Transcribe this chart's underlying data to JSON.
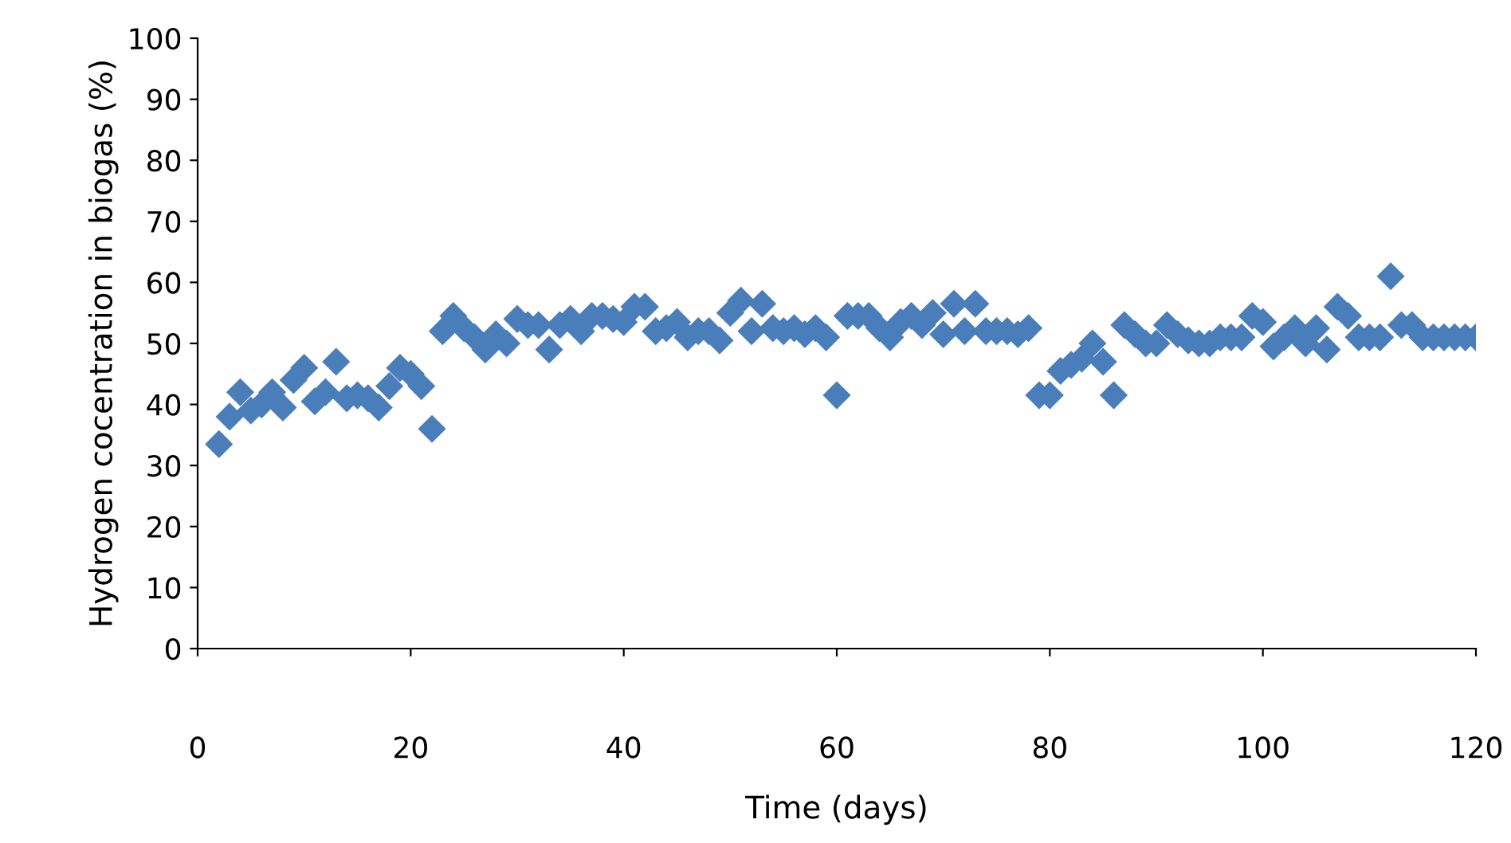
{
  "chart_data": {
    "type": "scatter",
    "xlabel": "Time (days)",
    "ylabel": "Hydrogen cocentration in biogas (%)",
    "x": [
      2,
      3,
      4,
      5,
      6,
      7,
      8,
      9,
      10,
      11,
      12,
      13,
      14,
      15,
      16,
      17,
      18,
      19,
      20,
      21,
      22,
      23,
      24,
      25,
      26,
      27,
      28,
      29,
      30,
      31,
      32,
      33,
      34,
      35,
      36,
      37,
      38,
      39,
      40,
      41,
      42,
      43,
      44,
      45,
      46,
      47,
      48,
      49,
      50,
      51,
      52,
      53,
      54,
      55,
      56,
      57,
      58,
      59,
      60,
      61,
      62,
      63,
      64,
      65,
      66,
      67,
      68,
      69,
      70,
      71,
      72,
      73,
      74,
      75,
      76,
      77,
      78,
      79,
      80,
      81,
      82,
      83,
      84,
      85,
      86,
      87,
      88,
      89,
      90,
      91,
      92,
      93,
      94,
      95,
      96,
      97,
      98,
      99,
      100,
      101,
      102,
      103,
      104,
      105,
      106,
      107,
      108,
      109,
      110,
      111,
      112,
      113,
      114,
      115,
      116,
      117,
      118,
      119,
      120
    ],
    "series": [
      {
        "color": "#4a7ebb",
        "values": [
          33.5,
          38,
          42,
          39,
          40,
          42,
          39.5,
          44,
          46,
          40.5,
          42,
          47,
          41,
          41.5,
          41,
          39.5,
          43,
          46,
          45,
          43,
          36,
          52,
          54.5,
          52.5,
          51,
          49,
          51.5,
          50,
          54,
          53,
          53,
          49,
          53,
          54,
          52,
          54.5,
          54.5,
          54,
          53.5,
          56,
          56,
          52,
          52.5,
          53.5,
          51,
          52,
          52,
          50.5,
          55,
          57,
          52,
          56.5,
          52.5,
          52,
          52.5,
          51.5,
          52.5,
          51,
          41.5,
          54.5,
          54.5,
          54.5,
          52.5,
          51,
          53.5,
          54.5,
          53,
          55,
          51.5,
          56.5,
          52,
          56.5,
          52,
          52,
          52,
          51.5,
          52.5,
          41.5,
          41.5,
          45.5,
          46.5,
          47.5,
          50,
          47,
          41.5,
          53,
          51.5,
          50,
          50,
          53,
          51.5,
          50.5,
          50,
          50,
          51,
          51,
          51,
          54.5,
          53.5,
          49.5,
          51,
          52.5,
          50,
          52.5,
          49,
          56,
          54.5,
          51,
          51,
          51,
          61,
          53,
          53,
          51,
          51,
          51,
          51,
          51,
          51
        ]
      }
    ],
    "marker": "diamond",
    "xlim": [
      0,
      120
    ],
    "xticks": [
      0,
      20,
      40,
      60,
      80,
      100,
      120
    ],
    "ylim": [
      0,
      100
    ],
    "yticks": [
      0,
      10,
      20,
      30,
      40,
      50,
      60,
      70,
      80,
      90,
      100
    ],
    "grid": false,
    "legend": false
  }
}
